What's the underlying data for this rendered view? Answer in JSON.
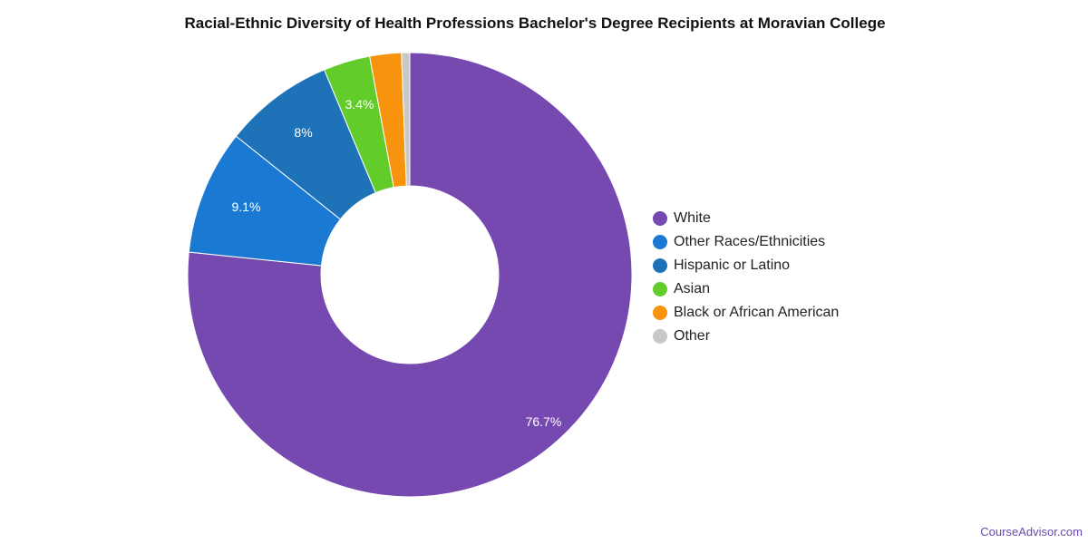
{
  "chart_title": "Racial-Ethnic Diversity of Health Professions Bachelor's Degree Recipients at Moravian College",
  "watermark": "CourseAdvisor.com",
  "chart_data": {
    "type": "pie",
    "title": "Racial-Ethnic Diversity of Health Professions Bachelor's Degree Recipients at Moravian College",
    "donut": true,
    "legend_position": "right",
    "series": [
      {
        "name": "White",
        "value": 76.7,
        "label": "76.7%",
        "color": "#7549b0"
      },
      {
        "name": "Other Races/Ethnicities",
        "value": 9.1,
        "label": "9.1%",
        "color": "#1a7ad3"
      },
      {
        "name": "Hispanic or Latino",
        "value": 8.0,
        "label": "8%",
        "color": "#1e72b8"
      },
      {
        "name": "Asian",
        "value": 3.4,
        "label": "3.4%",
        "color": "#62cc2b"
      },
      {
        "name": "Black or African American",
        "value": 2.3,
        "label": "",
        "color": "#f7930c"
      },
      {
        "name": "Other",
        "value": 0.6,
        "label": "",
        "color": "#c8c8c8"
      }
    ]
  }
}
